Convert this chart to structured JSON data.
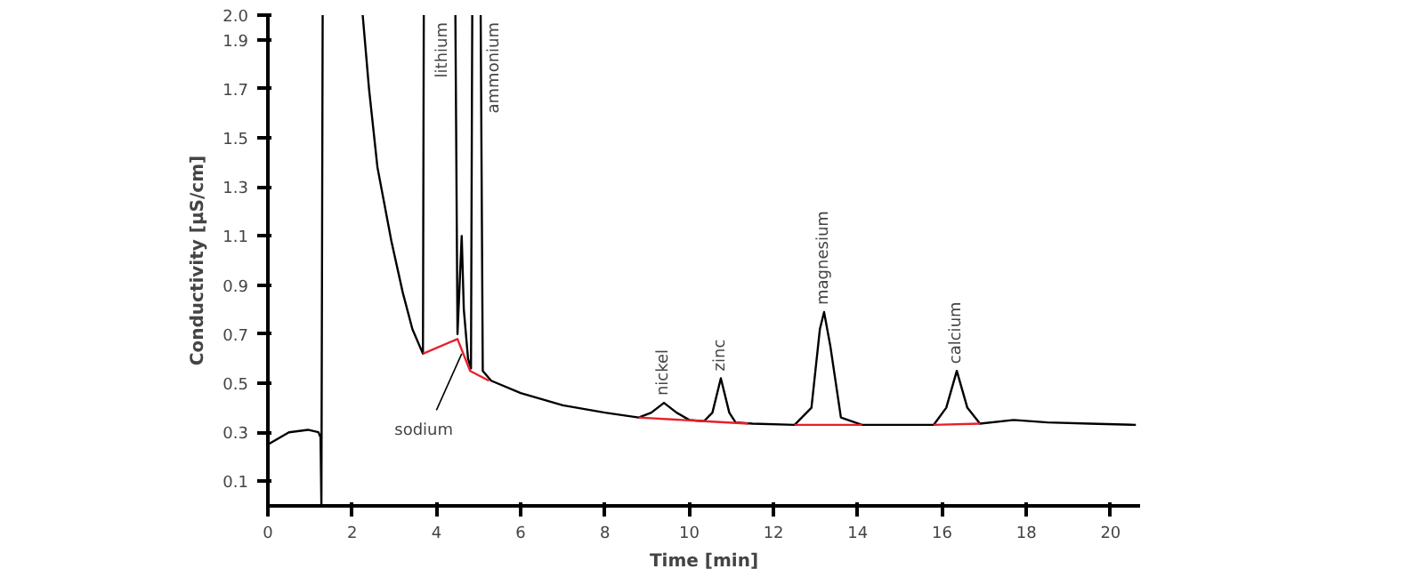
{
  "chart_data": {
    "type": "line",
    "xlabel": "Time [min]",
    "ylabel": "Conductivity [µS/cm]",
    "xlim": [
      0,
      20.7
    ],
    "ylim": [
      0,
      2.0
    ],
    "xticks": [
      0,
      2,
      4,
      6,
      8,
      10,
      12,
      14,
      16,
      18,
      20
    ],
    "yticks": [
      0.1,
      0.3,
      0.5,
      0.7,
      0.9,
      1.1,
      1.3,
      1.5,
      1.7,
      1.9,
      {
        "value": 2.0,
        "label": "2.0"
      }
    ],
    "grid": false,
    "series": [
      {
        "color": "#000000",
        "x": [
          0,
          0.2,
          0.5,
          0.95,
          1.2,
          1.25,
          1.27,
          1.3,
          1.8,
          2.25,
          2.4,
          2.6,
          2.93,
          3.2,
          3.43,
          3.68,
          3.7,
          4.0,
          4.45,
          4.5,
          4.55,
          4.6,
          4.65,
          4.75,
          4.82,
          4.85,
          4.95,
          5.05,
          5.1,
          5.3,
          6,
          7,
          8,
          8.8,
          9.1,
          9.4,
          9.7,
          10,
          10.35,
          10.55,
          10.75,
          10.95,
          11.1,
          11.5,
          12.5,
          12.9,
          13.1,
          13.2,
          13.35,
          13.6,
          14.1,
          15.8,
          16.1,
          16.35,
          16.6,
          16.9,
          17.7,
          18.5,
          19.5,
          20.6
        ],
        "values": [
          0.25,
          0.27,
          0.3,
          0.31,
          0.3,
          0.28,
          0,
          2.0,
          null,
          2.0,
          1.7,
          1.38,
          1.08,
          0.87,
          0.72,
          0.62,
          2.0,
          null,
          2.0,
          0.7,
          0.9,
          1.1,
          0.8,
          0.6,
          0.56,
          2.0,
          null,
          2.0,
          0.55,
          0.51,
          0.46,
          0.41,
          0.38,
          0.36,
          0.38,
          0.42,
          0.38,
          0.35,
          0.345,
          0.38,
          0.52,
          0.38,
          0.34,
          0.335,
          0.33,
          0.4,
          0.72,
          0.79,
          0.65,
          0.36,
          0.33,
          0.33,
          0.4,
          0.55,
          0.4,
          0.335,
          0.35,
          0.34,
          0.335,
          0.33
        ]
      },
      {
        "color": "#e8202a",
        "x": [
          3.68,
          4.5,
          4.8,
          5.25,
          5.3,
          8.8,
          10.35,
          11.4,
          11.5,
          12.5,
          14.1,
          14.2,
          15.8,
          16.9
        ],
        "values": [
          0.62,
          0.68,
          0.55,
          0.51,
          null,
          0.36,
          0.345,
          0.335,
          null,
          0.33,
          0.33,
          null,
          0.33,
          0.335
        ]
      }
    ],
    "annotations": [
      {
        "text": "lithium",
        "x": 4.45,
        "y": 2.0
      },
      {
        "text": "sodium",
        "x": 4.6,
        "y": 0.62
      },
      {
        "text": "ammonium",
        "x": 5.05,
        "y": 2.0
      },
      {
        "text": "nickel",
        "x": 9.4,
        "y": 0.42
      },
      {
        "text": "zinc",
        "x": 10.75,
        "y": 0.52
      },
      {
        "text": "magnesium",
        "x": 13.2,
        "y": 0.79
      },
      {
        "text": "calcium",
        "x": 16.35,
        "y": 0.55
      }
    ]
  }
}
